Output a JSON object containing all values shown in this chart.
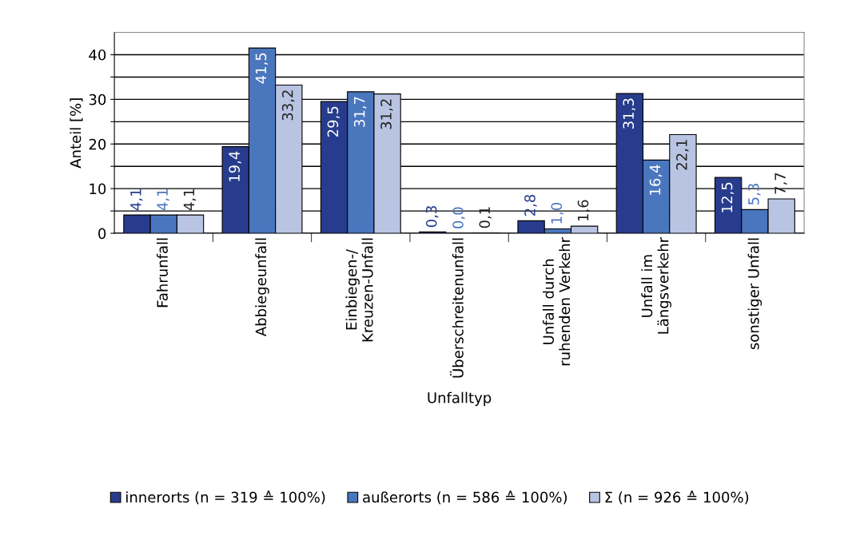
{
  "chart_data": {
    "type": "bar",
    "xlabel": "Unfalltyp",
    "ylabel": "Anteil [%]",
    "categories": [
      "Fahrunfall",
      "Abbiegeunfall",
      "Einbiegen-/\nKreuzen-Unfall",
      "Überschreitenunfall",
      "Unfall durch\nruhenden Verkehr",
      "Unfall im\nLängsverkehr",
      "sonstiger Unfall"
    ],
    "series": [
      {
        "name": "innerorts (n = 319 ≙ 100%)",
        "color": "#283c8e",
        "values": [
          4.1,
          19.4,
          29.5,
          0.3,
          2.8,
          31.3,
          12.5
        ],
        "value_labels": [
          "4,1",
          "19,4",
          "29,5",
          "0,3",
          "2,8",
          "31,3",
          "12,5"
        ]
      },
      {
        "name": "außerorts (n = 586 ≙ 100%)",
        "color": "#4a76be",
        "values": [
          4.1,
          41.5,
          31.7,
          0.0,
          1.0,
          16.4,
          5.3
        ],
        "value_labels": [
          "4,1",
          "41,5",
          "31,7",
          "0,0",
          "1,0",
          "16,4",
          "5,3"
        ]
      },
      {
        "name": "Σ (n = 926 ≙ 100%)",
        "color": "#b8c4e2",
        "values": [
          4.1,
          33.2,
          31.2,
          0.1,
          1.6,
          22.1,
          7.7
        ],
        "value_labels": [
          "4,1",
          "33,2",
          "31,2",
          "0,1",
          "1,6",
          "22,1",
          "7,7"
        ]
      }
    ],
    "ylim": [
      0,
      45
    ],
    "yticks": [
      0,
      {
        "value": 5,
        "label": null
      },
      10,
      {
        "value": 15,
        "label": null
      },
      20,
      {
        "value": 25,
        "label": null
      },
      30,
      {
        "value": 35,
        "label": null
      },
      40
    ],
    "grid": "y",
    "legend": "bottom"
  }
}
